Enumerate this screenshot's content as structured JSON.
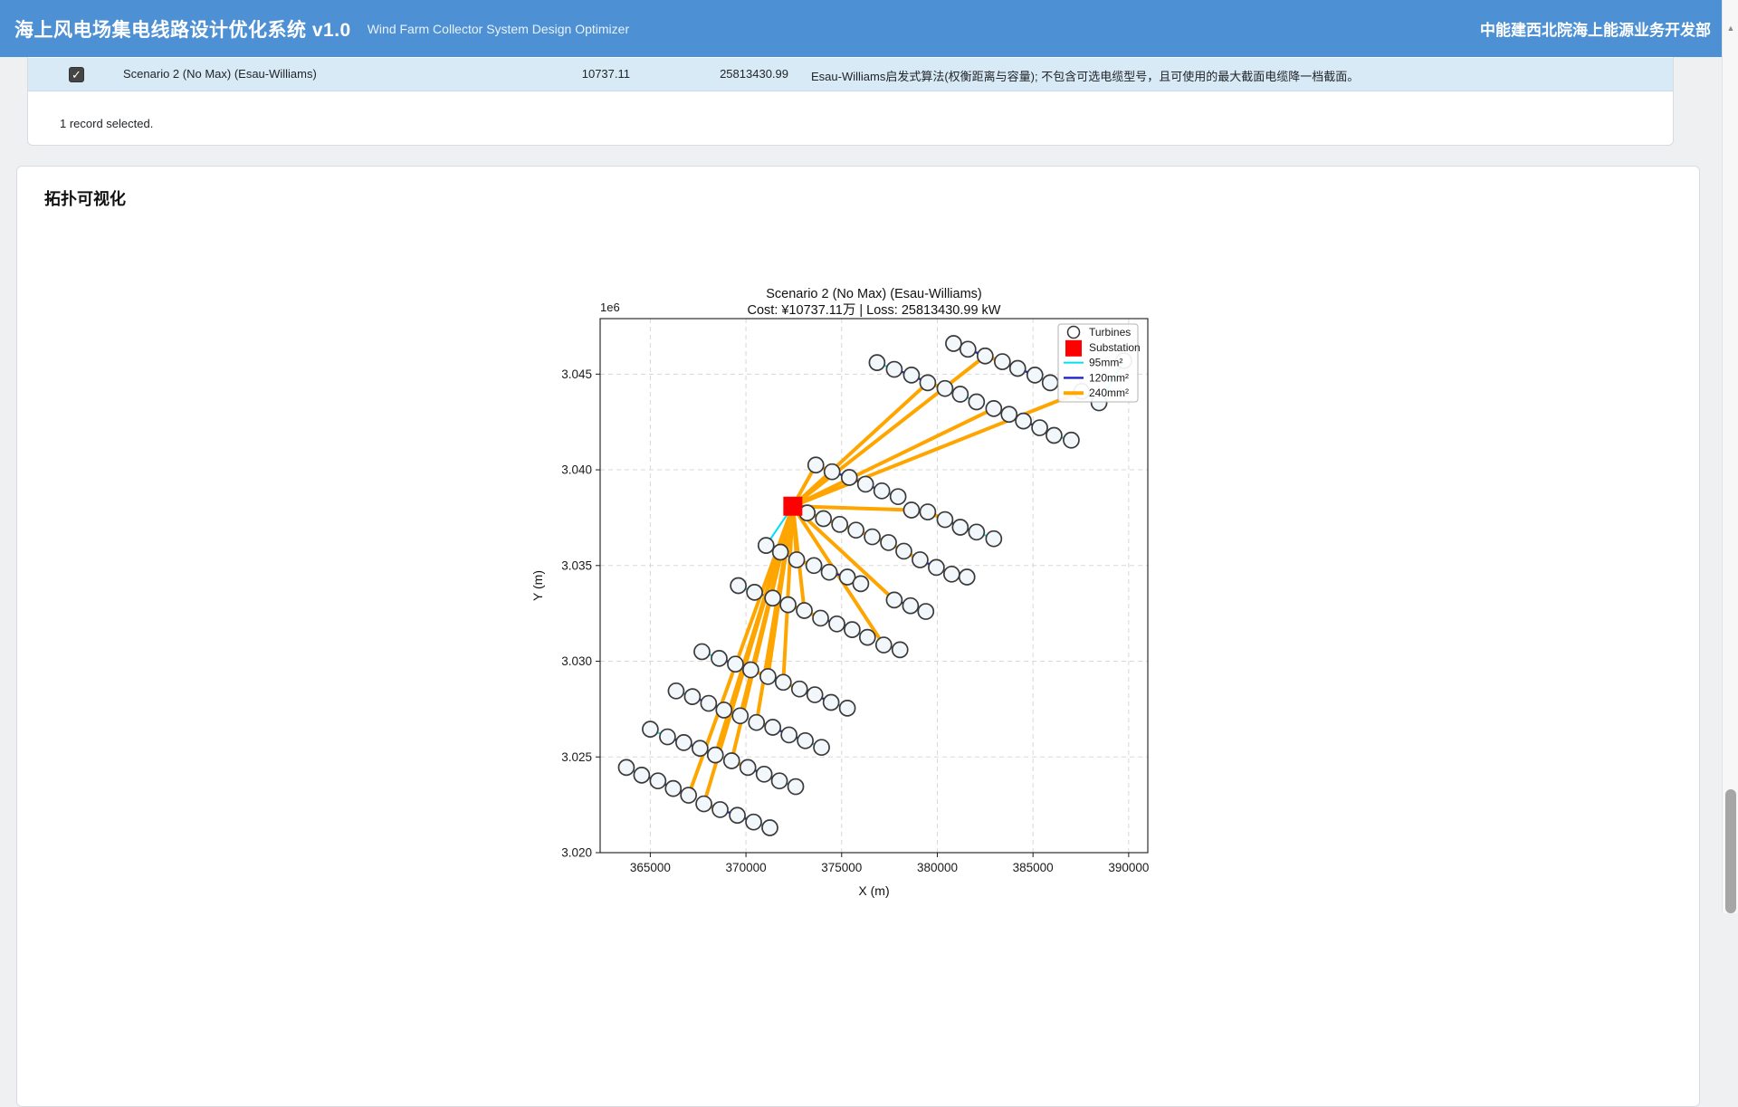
{
  "header": {
    "title_zh": "海上风电场集电线路设计优化系统 v1.0",
    "title_en": "Wind Farm Collector System Design Optimizer",
    "org": "中能建西北院海上能源业务开发部",
    "bg": "#4d90d4"
  },
  "results": {
    "row": {
      "checked": "✓",
      "name": "Scenario 2 (No Max) (Esau-Williams)",
      "cost": "10737.11",
      "loss": "25813430.99",
      "description": "Esau-Williams启发式算法(权衡距离与容量); 不包含可选电缆型号，且可使用的最大截面电缆降一档截面。"
    },
    "footer": "1 record selected."
  },
  "section": {
    "title": "拓扑可视化"
  },
  "scrollbar": {
    "up_arrow": "▲"
  },
  "chart_data": {
    "type": "scatter",
    "title": "Scenario 2 (No Max) (Esau-Williams)",
    "subtitle": "Cost: ¥10737.11万 | Loss: 25813430.99 kW",
    "xlabel": "X (m)",
    "ylabel": "Y (m)",
    "offset_label": "1e6",
    "grid": true,
    "legend_position": "upper right",
    "xlim": [
      362380,
      391000
    ],
    "ylim": [
      3020000,
      3047900
    ],
    "xticks": [
      365000,
      370000,
      375000,
      380000,
      385000,
      390000
    ],
    "xtick_labels": [
      "365000",
      "370000",
      "375000",
      "380000",
      "385000",
      "390000"
    ],
    "yticks": [
      3020000,
      3025000,
      3030000,
      3035000,
      3040000,
      3045000
    ],
    "ytick_labels": [
      "3.020",
      "3.025",
      "3.030",
      "3.035",
      "3.040",
      "3.045"
    ],
    "legend": [
      {
        "label": "Turbines",
        "marker": "circle"
      },
      {
        "label": "Substation",
        "marker": "square"
      },
      {
        "label": "95mm²",
        "marker": "line-95"
      },
      {
        "label": "120mm²",
        "marker": "line-120"
      },
      {
        "label": "240mm²",
        "marker": "line-240"
      }
    ],
    "colors": {
      "95": "#00e0f0",
      "120": "#2222cc",
      "240": "#ffa500",
      "substation": "#ff0000",
      "turbine_fill": "#f2f7fb",
      "turbine_edge": "#3a3a3a"
    },
    "line_widths": {
      "95": 2,
      "120": 2.4,
      "240": 4
    },
    "substation": {
      "x": 372450,
      "y": 3038100
    },
    "turbines": [
      [
        380850,
        3046600
      ],
      [
        381600,
        3046300
      ],
      [
        382500,
        3045950
      ],
      [
        383400,
        3045650
      ],
      [
        384200,
        3045300
      ],
      [
        385100,
        3044950
      ],
      [
        385900,
        3044550
      ],
      [
        376850,
        3045600
      ],
      [
        377750,
        3045250
      ],
      [
        378650,
        3044950
      ],
      [
        379500,
        3044550
      ],
      [
        380400,
        3044250
      ],
      [
        381200,
        3043950
      ],
      [
        382050,
        3043550
      ],
      [
        382950,
        3043200
      ],
      [
        383750,
        3042900
      ],
      [
        384500,
        3042550
      ],
      [
        385350,
        3042200
      ],
      [
        386100,
        3041800
      ],
      [
        387000,
        3041550
      ],
      [
        387550,
        3044100
      ],
      [
        388450,
        3043500
      ],
      [
        389750,
        3045700
      ],
      [
        373650,
        3040250
      ],
      [
        374500,
        3039900
      ],
      [
        375400,
        3039600
      ],
      [
        376250,
        3039250
      ],
      [
        377100,
        3038900
      ],
      [
        377950,
        3038600
      ],
      [
        378650,
        3037900
      ],
      [
        379500,
        3037800
      ],
      [
        380400,
        3037400
      ],
      [
        381200,
        3037000
      ],
      [
        382050,
        3036750
      ],
      [
        382950,
        3036400
      ],
      [
        373200,
        3037750
      ],
      [
        374050,
        3037450
      ],
      [
        374900,
        3037150
      ],
      [
        375750,
        3036850
      ],
      [
        376600,
        3036500
      ],
      [
        377450,
        3036200
      ],
      [
        378250,
        3035750
      ],
      [
        379100,
        3035300
      ],
      [
        379950,
        3034900
      ],
      [
        380750,
        3034550
      ],
      [
        381550,
        3034400
      ],
      [
        377750,
        3033200
      ],
      [
        378600,
        3032900
      ],
      [
        379400,
        3032600
      ],
      [
        377200,
        3030850
      ],
      [
        378050,
        3030600
      ],
      [
        371050,
        3036050
      ],
      [
        371800,
        3035700
      ],
      [
        372650,
        3035300
      ],
      [
        373550,
        3035000
      ],
      [
        374350,
        3034650
      ],
      [
        375300,
        3034400
      ],
      [
        376000,
        3034050
      ],
      [
        369600,
        3033950
      ],
      [
        370450,
        3033600
      ],
      [
        371400,
        3033300
      ],
      [
        372200,
        3032950
      ],
      [
        373050,
        3032650
      ],
      [
        373900,
        3032250
      ],
      [
        374750,
        3031950
      ],
      [
        375550,
        3031650
      ],
      [
        376350,
        3031250
      ],
      [
        367700,
        3030500
      ],
      [
        368600,
        3030150
      ],
      [
        369450,
        3029850
      ],
      [
        370250,
        3029550
      ],
      [
        371150,
        3029200
      ],
      [
        371950,
        3028900
      ],
      [
        372800,
        3028550
      ],
      [
        373600,
        3028250
      ],
      [
        374450,
        3027850
      ],
      [
        375300,
        3027550
      ],
      [
        366350,
        3028450
      ],
      [
        367200,
        3028150
      ],
      [
        368050,
        3027800
      ],
      [
        368850,
        3027450
      ],
      [
        369700,
        3027150
      ],
      [
        370550,
        3026800
      ],
      [
        371400,
        3026550
      ],
      [
        372250,
        3026150
      ],
      [
        373100,
        3025850
      ],
      [
        373950,
        3025500
      ],
      [
        365000,
        3026450
      ],
      [
        365900,
        3026050
      ],
      [
        366750,
        3025750
      ],
      [
        367600,
        3025450
      ],
      [
        368400,
        3025100
      ],
      [
        369250,
        3024800
      ],
      [
        370100,
        3024450
      ],
      [
        370950,
        3024100
      ],
      [
        371750,
        3023750
      ],
      [
        372600,
        3023450
      ],
      [
        363750,
        3024450
      ],
      [
        364550,
        3024050
      ],
      [
        365400,
        3023750
      ],
      [
        366200,
        3023350
      ],
      [
        367000,
        3023000
      ],
      [
        367800,
        3022550
      ],
      [
        368650,
        3022250
      ],
      [
        369550,
        3021950
      ],
      [
        370400,
        3021600
      ],
      [
        371250,
        3021300
      ]
    ],
    "edges": [
      [
        "S",
        2,
        "240"
      ],
      [
        2,
        1,
        "120"
      ],
      [
        1,
        0,
        "95"
      ],
      [
        2,
        3,
        "240"
      ],
      [
        3,
        4,
        "120"
      ],
      [
        4,
        5,
        "120"
      ],
      [
        5,
        6,
        "95"
      ],
      [
        "S",
        10,
        "240"
      ],
      [
        10,
        9,
        "120"
      ],
      [
        9,
        8,
        "120"
      ],
      [
        8,
        7,
        "95"
      ],
      [
        10,
        11,
        "240"
      ],
      [
        11,
        12,
        "120"
      ],
      [
        12,
        13,
        "95"
      ],
      [
        "S",
        14,
        "240"
      ],
      [
        14,
        15,
        "240"
      ],
      [
        15,
        16,
        "120"
      ],
      [
        16,
        17,
        "120"
      ],
      [
        17,
        18,
        "120"
      ],
      [
        18,
        19,
        "95"
      ],
      [
        "S",
        20,
        "240"
      ],
      [
        20,
        21,
        "95"
      ],
      [
        21,
        22,
        "95"
      ],
      [
        "S",
        23,
        "240"
      ],
      [
        23,
        24,
        "240"
      ],
      [
        24,
        25,
        "120"
      ],
      [
        25,
        26,
        "120"
      ],
      [
        26,
        27,
        "120"
      ],
      [
        27,
        28,
        "95"
      ],
      [
        "S",
        29,
        "240"
      ],
      [
        29,
        30,
        "240"
      ],
      [
        30,
        31,
        "240"
      ],
      [
        31,
        32,
        "120"
      ],
      [
        32,
        33,
        "120"
      ],
      [
        33,
        34,
        "95"
      ],
      [
        "S",
        35,
        "240"
      ],
      [
        35,
        36,
        "240"
      ],
      [
        36,
        37,
        "240"
      ],
      [
        37,
        38,
        "240"
      ],
      [
        38,
        39,
        "240"
      ],
      [
        39,
        40,
        "240"
      ],
      [
        40,
        41,
        "240"
      ],
      [
        41,
        42,
        "240"
      ],
      [
        42,
        43,
        "120"
      ],
      [
        43,
        44,
        "120"
      ],
      [
        44,
        45,
        "95"
      ],
      [
        "S",
        46,
        "240"
      ],
      [
        46,
        47,
        "120"
      ],
      [
        47,
        48,
        "95"
      ],
      [
        "S",
        49,
        "240"
      ],
      [
        49,
        50,
        "95"
      ],
      [
        "S",
        51,
        "95"
      ],
      [
        "S",
        53,
        "240"
      ],
      [
        53,
        52,
        "120"
      ],
      [
        53,
        54,
        "240"
      ],
      [
        54,
        55,
        "120"
      ],
      [
        55,
        56,
        "120"
      ],
      [
        56,
        57,
        "95"
      ],
      [
        "S",
        62,
        "240"
      ],
      [
        62,
        61,
        "240"
      ],
      [
        61,
        60,
        "120"
      ],
      [
        60,
        59,
        "120"
      ],
      [
        59,
        58,
        "95"
      ],
      [
        62,
        63,
        "240"
      ],
      [
        63,
        64,
        "120"
      ],
      [
        64,
        65,
        "120"
      ],
      [
        65,
        66,
        "95"
      ],
      [
        "S",
        71,
        "240"
      ],
      [
        71,
        70,
        "240"
      ],
      [
        70,
        69,
        "120"
      ],
      [
        69,
        68,
        "120"
      ],
      [
        68,
        67,
        "95"
      ],
      [
        "S",
        72,
        "240"
      ],
      [
        72,
        73,
        "240"
      ],
      [
        73,
        74,
        "120"
      ],
      [
        74,
        75,
        "120"
      ],
      [
        75,
        76,
        "95"
      ],
      [
        "S",
        81,
        "240"
      ],
      [
        81,
        80,
        "240"
      ],
      [
        80,
        79,
        "120"
      ],
      [
        79,
        78,
        "120"
      ],
      [
        78,
        77,
        "95"
      ],
      [
        "S",
        82,
        "240"
      ],
      [
        82,
        83,
        "240"
      ],
      [
        83,
        84,
        "120"
      ],
      [
        84,
        85,
        "120"
      ],
      [
        85,
        86,
        "95"
      ],
      [
        "S",
        91,
        "240"
      ],
      [
        91,
        90,
        "240"
      ],
      [
        90,
        89,
        "120"
      ],
      [
        89,
        88,
        "120"
      ],
      [
        88,
        87,
        "95"
      ],
      [
        "S",
        92,
        "240"
      ],
      [
        92,
        93,
        "240"
      ],
      [
        93,
        94,
        "120"
      ],
      [
        94,
        95,
        "120"
      ],
      [
        95,
        96,
        "95"
      ],
      [
        "S",
        101,
        "240"
      ],
      [
        101,
        100,
        "240"
      ],
      [
        100,
        99,
        "120"
      ],
      [
        99,
        98,
        "120"
      ],
      [
        98,
        97,
        "95"
      ],
      [
        "S",
        102,
        "240"
      ],
      [
        102,
        103,
        "240"
      ],
      [
        103,
        104,
        "120"
      ],
      [
        104,
        105,
        "120"
      ],
      [
        105,
        106,
        "95"
      ]
    ]
  }
}
